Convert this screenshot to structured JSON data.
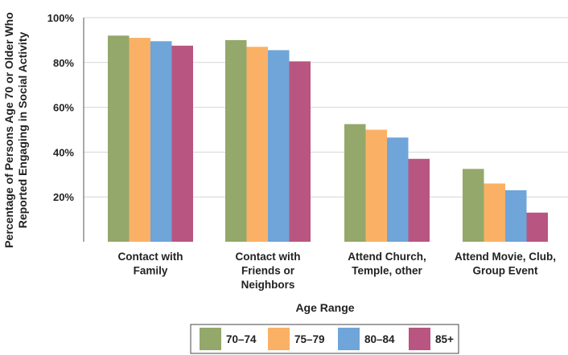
{
  "chart_data": {
    "type": "bar",
    "title": "",
    "ylabel_lines": [
      "Percentage of Persons Age 70 or Older Who",
      "Reported Engaging in Social Activity"
    ],
    "xlabel": "Age Range",
    "ylim": [
      0,
      100
    ],
    "y_ticks": [
      20,
      40,
      60,
      80,
      100
    ],
    "y_tick_labels": [
      "20%",
      "40%",
      "60%",
      "80%",
      "100%"
    ],
    "grid": true,
    "legend_position": "bottom",
    "categories": [
      [
        "Contact with",
        "Family"
      ],
      [
        "Contact with",
        "Friends or",
        "Neighbors"
      ],
      [
        "Attend Church,",
        "Temple, other"
      ],
      [
        "Attend Movie, Club,",
        "Group Event"
      ]
    ],
    "series": [
      {
        "name": "70–74",
        "color": "#93a86a",
        "values": [
          92,
          90,
          52.5,
          32.5
        ]
      },
      {
        "name": "75–79",
        "color": "#fbb165",
        "values": [
          91,
          87,
          50,
          26
        ]
      },
      {
        "name": "80–84",
        "color": "#6fa5d9",
        "values": [
          89.5,
          85.5,
          46.5,
          23
        ]
      },
      {
        "name": "85+",
        "color": "#b85581",
        "values": [
          87.5,
          80.5,
          37,
          13
        ]
      }
    ]
  }
}
